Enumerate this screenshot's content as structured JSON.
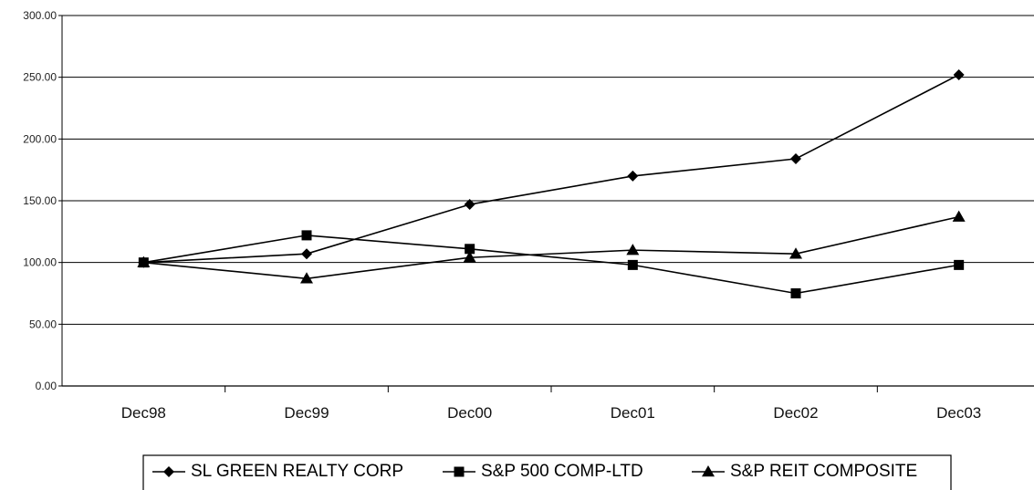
{
  "chart_data": {
    "type": "line",
    "title": "",
    "xlabel": "",
    "ylabel": "",
    "categories": [
      "Dec98",
      "Dec99",
      "Dec00",
      "Dec01",
      "Dec02",
      "Dec03"
    ],
    "ylim": [
      0,
      300
    ],
    "yticks": [
      "0.00",
      "50.00",
      "100.00",
      "150.00",
      "200.00",
      "250.00",
      "300.00"
    ],
    "grid": true,
    "legend_position": "bottom",
    "series": [
      {
        "name": "SL GREEN REALTY CORP",
        "marker": "diamond",
        "color": "#000000",
        "values": [
          100,
          107,
          147,
          170,
          184,
          252
        ]
      },
      {
        "name": "S&P 500 COMP-LTD",
        "marker": "square",
        "color": "#000000",
        "values": [
          100,
          122,
          111,
          98,
          75,
          98
        ]
      },
      {
        "name": "S&P REIT COMPOSITE",
        "marker": "triangle",
        "color": "#000000",
        "values": [
          100,
          87,
          104,
          110,
          107,
          137
        ]
      }
    ]
  }
}
